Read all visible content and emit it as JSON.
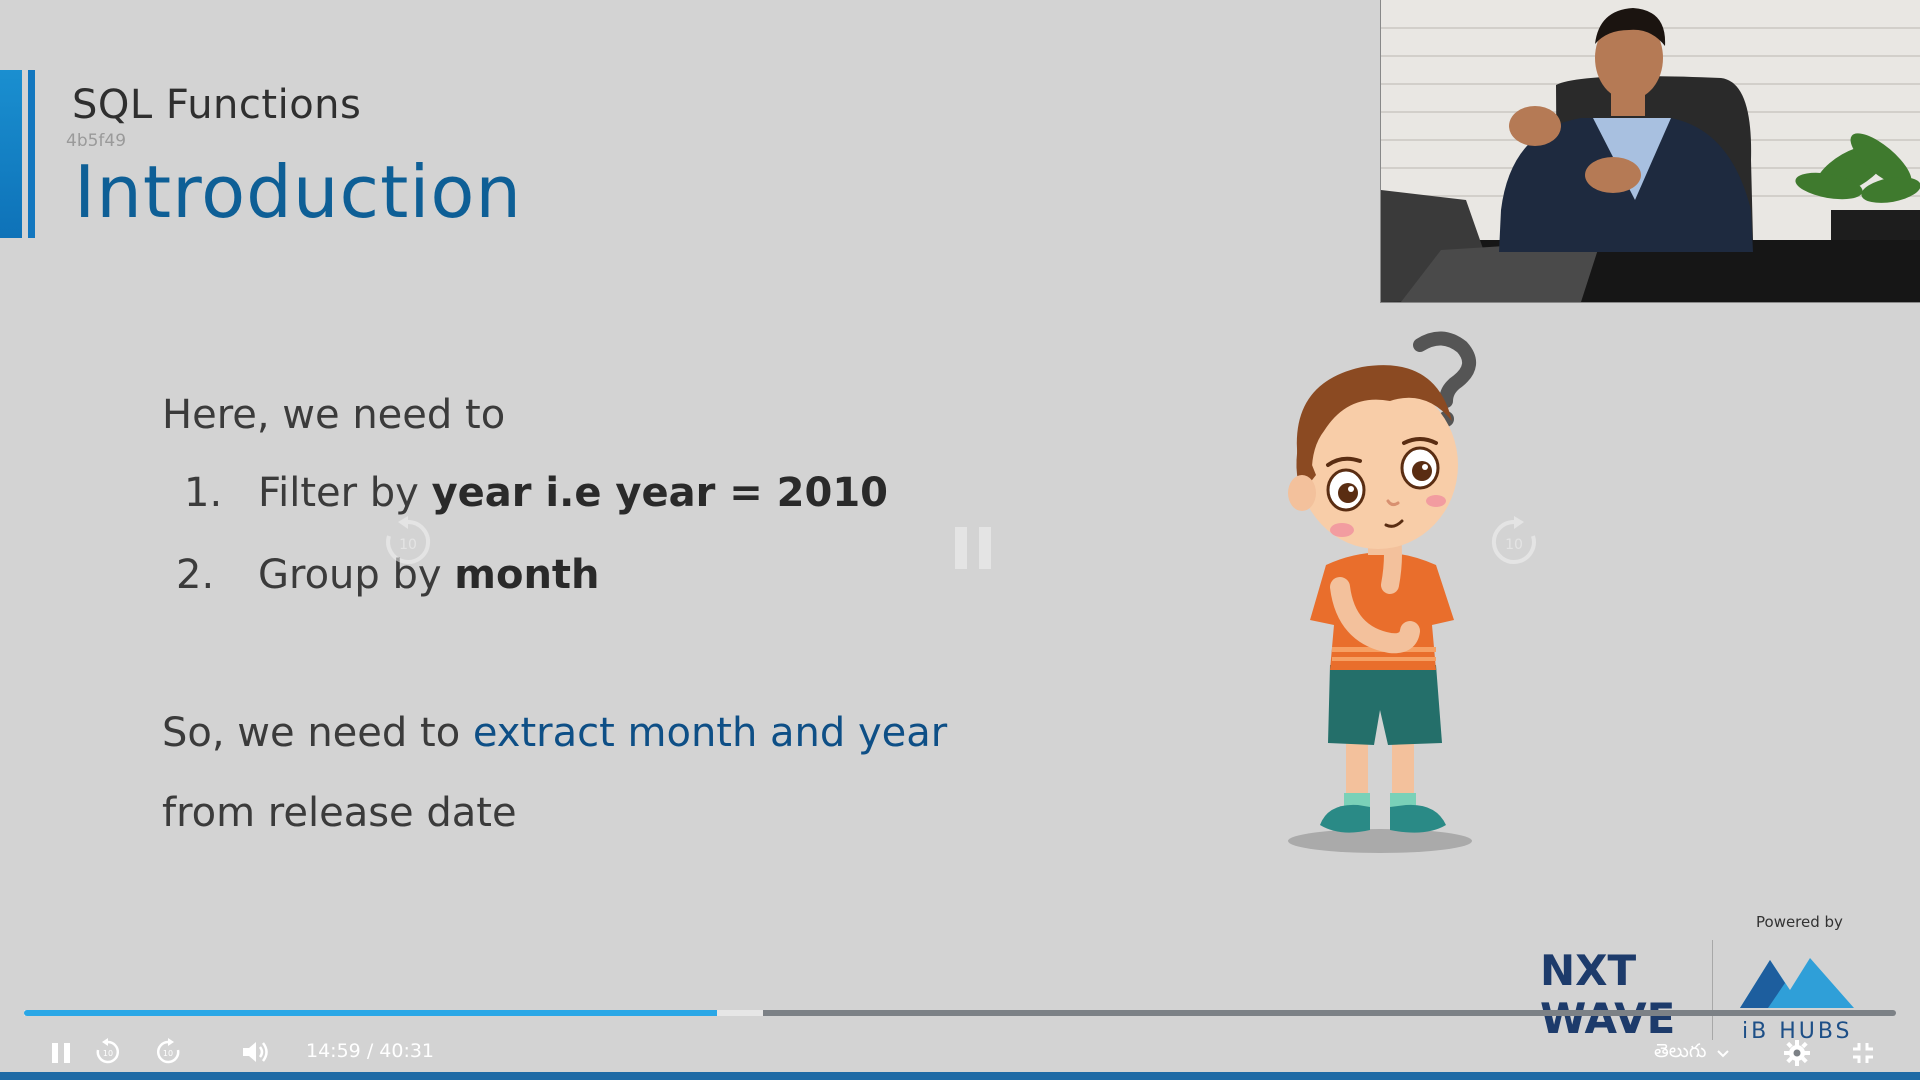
{
  "slide": {
    "subtitle": "SQL Functions",
    "code": "4b5f49",
    "title": "Introduction",
    "intro": "Here, we need to",
    "items": [
      {
        "num": "1.",
        "prefix": "Filter by ",
        "bold": "year i.e year = 2010"
      },
      {
        "num": "2.",
        "prefix": "Group by ",
        "bold": "month"
      }
    ],
    "conclusion_prefix": "So, we need to ",
    "conclusion_highlight": "extract month and year",
    "conclusion_line2": "from release date"
  },
  "brand": {
    "powered_by": "Powered by",
    "nxt_line1": "NXT",
    "nxt_line2": "WAVE",
    "ib_label": "iB HUBS"
  },
  "player": {
    "current_time": "14:59",
    "separator": "/",
    "duration": "40:31",
    "progress_fraction": 0.37,
    "buffered_fraction": 0.395,
    "language": "తెలుగు",
    "skip_seconds": "10"
  },
  "colors": {
    "accent": "#1377bf",
    "title": "#0e5f96",
    "progress": "#2aa7e6"
  },
  "icons": {
    "pause": "pause-icon",
    "rewind": "rewind-10-icon",
    "forward": "forward-10-icon",
    "volume": "volume-icon",
    "settings": "gear-icon",
    "exit_fullscreen": "exit-fullscreen-icon",
    "dropdown": "chevron-down-icon",
    "question": "question-mark-icon"
  }
}
